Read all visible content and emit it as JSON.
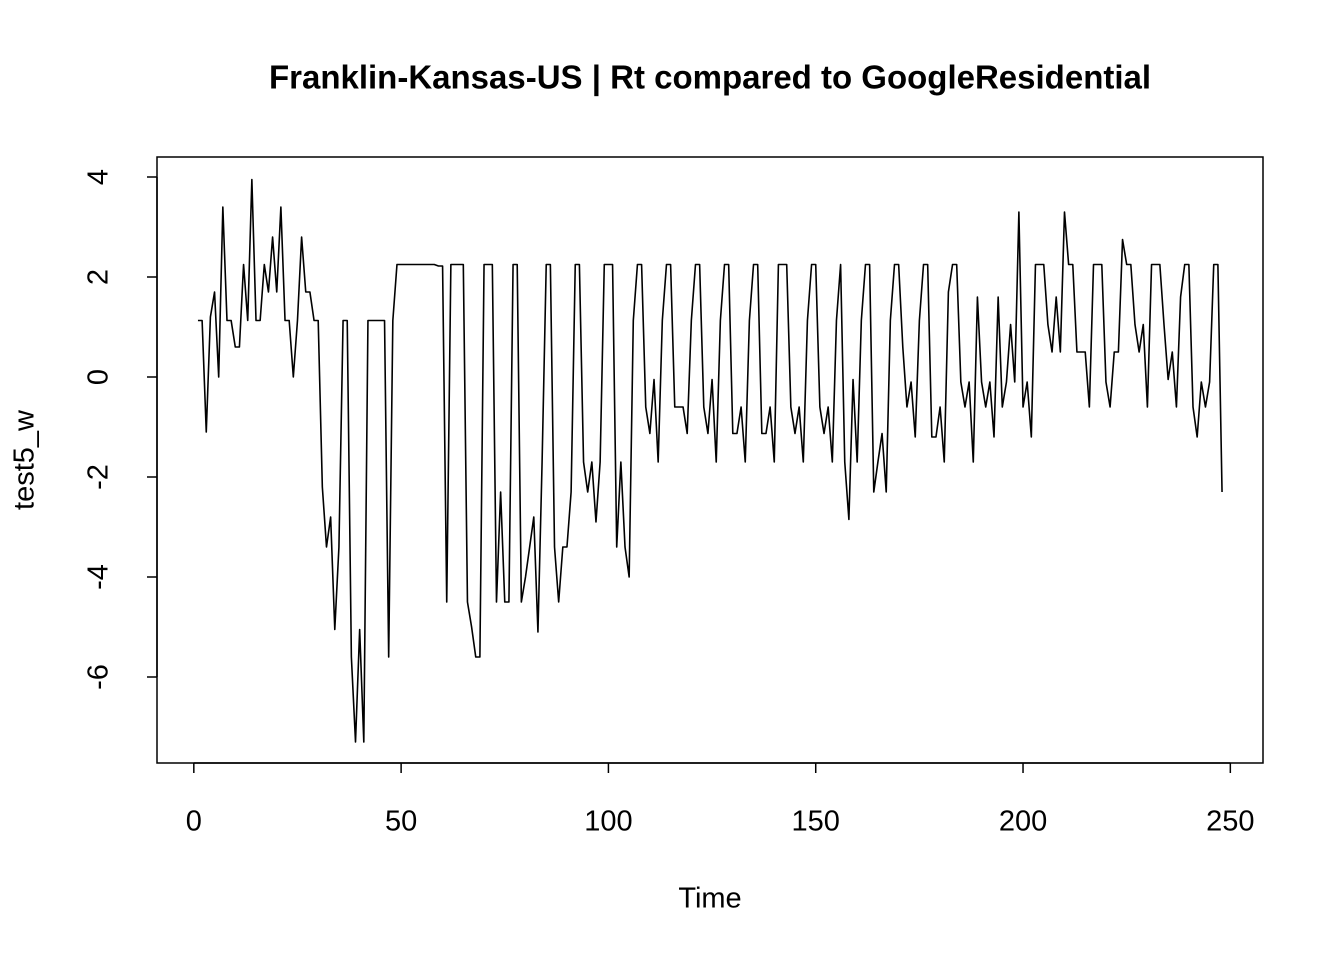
{
  "chart_data": {
    "type": "line",
    "title": "Franklin-Kansas-US | Rt compared to GoogleResidential",
    "xlabel": "Time",
    "ylabel": "test5_w",
    "color": "#000000",
    "xlim": [
      -8.88,
      257.88
    ],
    "ylim": [
      -7.72,
      4.4
    ],
    "xticks": [
      0,
      50,
      100,
      150,
      200,
      250
    ],
    "yticks": [
      -6,
      -4,
      -2,
      0,
      2,
      4
    ],
    "x": [
      1,
      2,
      3,
      4,
      5,
      6,
      7,
      8,
      9,
      10,
      11,
      12,
      13,
      14,
      15,
      16,
      17,
      18,
      19,
      20,
      21,
      22,
      23,
      24,
      25,
      26,
      27,
      28,
      29,
      30,
      31,
      32,
      33,
      34,
      35,
      36,
      37,
      38,
      39,
      40,
      41,
      42,
      43,
      44,
      45,
      46,
      47,
      48,
      49,
      50,
      51,
      52,
      53,
      54,
      55,
      56,
      57,
      58,
      59,
      60,
      61,
      62,
      63,
      64,
      65,
      66,
      67,
      68,
      69,
      70,
      71,
      72,
      73,
      74,
      75,
      76,
      77,
      78,
      79,
      80,
      81,
      82,
      83,
      84,
      85,
      86,
      87,
      88,
      89,
      90,
      91,
      92,
      93,
      94,
      95,
      96,
      97,
      98,
      99,
      100,
      101,
      102,
      103,
      104,
      105,
      106,
      107,
      108,
      109,
      110,
      111,
      112,
      113,
      114,
      115,
      116,
      117,
      118,
      119,
      120,
      121,
      122,
      123,
      124,
      125,
      126,
      127,
      128,
      129,
      130,
      131,
      132,
      133,
      134,
      135,
      136,
      137,
      138,
      139,
      140,
      141,
      142,
      143,
      144,
      145,
      146,
      147,
      148,
      149,
      150,
      151,
      152,
      153,
      154,
      155,
      156,
      157,
      158,
      159,
      160,
      161,
      162,
      163,
      164,
      165,
      166,
      167,
      168,
      169,
      170,
      171,
      172,
      173,
      174,
      175,
      176,
      177,
      178,
      179,
      180,
      181,
      182,
      183,
      184,
      185,
      186,
      187,
      188,
      189,
      190,
      191,
      192,
      193,
      194,
      195,
      196,
      197,
      198,
      199,
      200,
      201,
      202,
      203,
      204,
      205,
      206,
      207,
      208,
      209,
      210,
      211,
      212,
      213,
      214,
      215,
      216,
      217,
      218,
      219,
      220,
      221,
      222,
      223,
      224,
      225,
      226,
      227,
      228,
      229,
      230,
      231,
      232,
      233,
      234,
      235,
      236,
      237,
      238,
      239,
      240,
      241,
      242,
      243,
      244,
      245,
      246,
      247,
      248
    ],
    "values": [
      1.13,
      1.13,
      -1.1,
      1.2,
      1.7,
      0,
      3.4,
      1.13,
      1.13,
      0.6,
      0.6,
      2.25,
      1.13,
      3.95,
      1.13,
      1.13,
      2.25,
      1.7,
      2.8,
      1.7,
      3.4,
      1.13,
      1.13,
      0,
      1.13,
      2.8,
      1.7,
      1.7,
      1.13,
      1.13,
      -2.2,
      -3.4,
      -2.8,
      -5.05,
      -3.4,
      1.13,
      1.13,
      -5.6,
      -7.3,
      -5.05,
      -7.3,
      1.13,
      1.13,
      1.13,
      1.13,
      1.13,
      -5.6,
      1.13,
      2.25,
      2.25,
      2.25,
      2.25,
      2.25,
      2.25,
      2.25,
      2.25,
      2.25,
      2.25,
      2.22,
      2.22,
      -4.5,
      2.25,
      2.25,
      2.25,
      2.25,
      -4.5,
      -5.0,
      -5.6,
      -5.6,
      2.25,
      2.25,
      2.25,
      -4.5,
      -2.3,
      -4.5,
      -4.5,
      2.25,
      2.25,
      -4.5,
      -4.0,
      -3.4,
      -2.8,
      -5.1,
      -1.7,
      2.25,
      2.25,
      -3.4,
      -4.5,
      -3.4,
      -3.4,
      -2.3,
      2.25,
      2.25,
      -1.7,
      -2.3,
      -1.7,
      -2.9,
      -1.7,
      2.25,
      2.25,
      2.25,
      -3.4,
      -1.7,
      -3.4,
      -4.0,
      1.13,
      2.25,
      2.25,
      -0.6,
      -1.13,
      -0.05,
      -1.7,
      1.13,
      2.25,
      2.25,
      -0.6,
      -0.6,
      -0.6,
      -1.13,
      1.13,
      2.25,
      2.25,
      -0.6,
      -1.13,
      -0.05,
      -1.7,
      1.13,
      2.25,
      2.25,
      -1.13,
      -1.13,
      -0.6,
      -1.7,
      1.13,
      2.25,
      2.25,
      -1.13,
      -1.13,
      -0.6,
      -1.7,
      2.25,
      2.25,
      2.25,
      -0.6,
      -1.13,
      -0.6,
      -1.7,
      1.13,
      2.25,
      2.25,
      -0.6,
      -1.13,
      -0.6,
      -1.7,
      1.13,
      2.25,
      -1.7,
      -2.85,
      -0.05,
      -1.7,
      1.13,
      2.25,
      2.25,
      -2.3,
      -1.7,
      -1.13,
      -2.3,
      1.13,
      2.25,
      2.25,
      0.6,
      -0.6,
      -0.1,
      -1.2,
      1.13,
      2.25,
      2.25,
      -1.2,
      -1.2,
      -0.6,
      -1.7,
      1.7,
      2.25,
      2.25,
      -0.1,
      -0.6,
      -0.1,
      -1.7,
      1.6,
      -0.1,
      -0.6,
      -0.1,
      -1.2,
      1.6,
      -0.6,
      -0.1,
      1.05,
      -0.1,
      3.3,
      -0.6,
      -0.1,
      -1.2,
      2.25,
      2.25,
      2.25,
      1.05,
      0.5,
      1.6,
      0.5,
      3.3,
      2.25,
      2.25,
      0.5,
      0.5,
      0.5,
      -0.6,
      2.25,
      2.25,
      2.25,
      -0.1,
      -0.6,
      0.5,
      0.5,
      2.75,
      2.25,
      2.25,
      1.05,
      0.5,
      1.05,
      -0.6,
      2.25,
      2.25,
      2.25,
      1.05,
      -0.05,
      0.5,
      -0.6,
      1.6,
      2.25,
      2.25,
      -0.6,
      -1.2,
      -0.1,
      -0.6,
      -0.1,
      2.25,
      2.25,
      -2.3
    ]
  }
}
